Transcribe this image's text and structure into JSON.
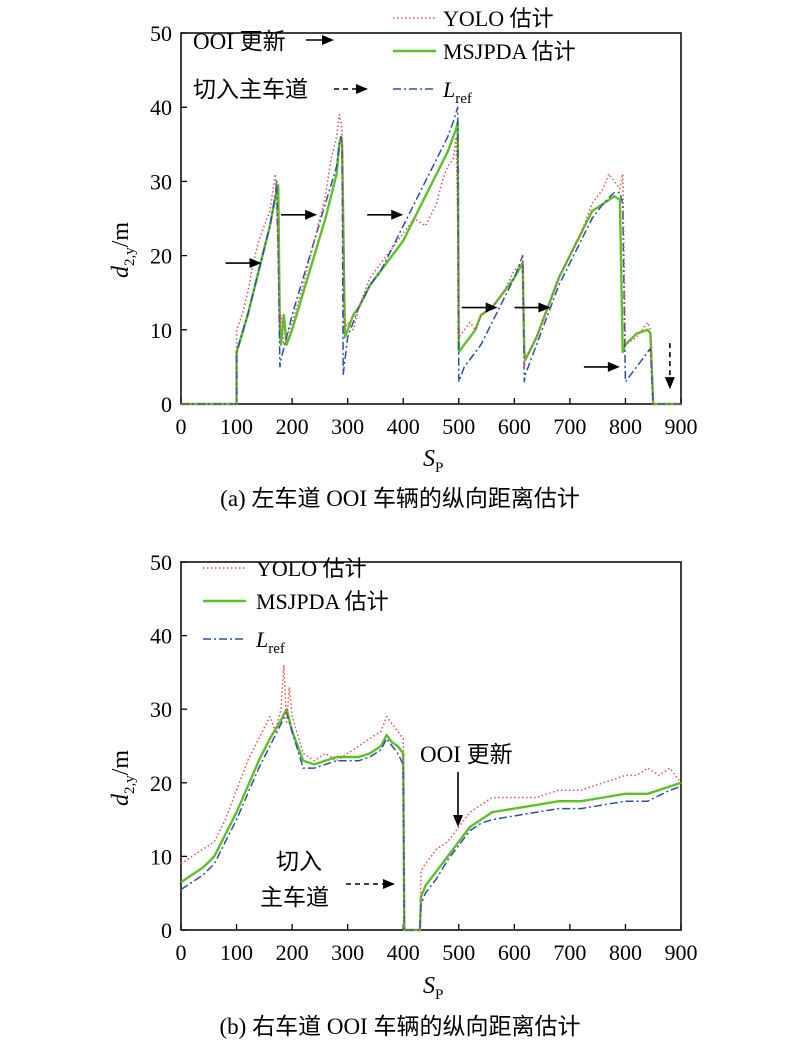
{
  "chart_data": [
    {
      "type": "line",
      "caption": "(a) 左车道 OOI 车辆的纵向距离估计",
      "xlabel": "S",
      "xlabel_sub": "P",
      "ylabel": "d",
      "ylabel_sub": "2,y",
      "ylabel_unit": "/m",
      "xlim": [
        0,
        900
      ],
      "ylim": [
        0,
        50
      ],
      "xticks": [
        0,
        100,
        200,
        300,
        400,
        500,
        600,
        700,
        800,
        900
      ],
      "yticks": [
        0,
        10,
        20,
        30,
        40,
        50
      ],
      "grid": false,
      "legend_position": "top-right",
      "series": [
        {
          "name": "YOLO 估计",
          "color": "#d9534f",
          "style": "dotted",
          "x": [
            0,
            95,
            100,
            100,
            110,
            120,
            130,
            140,
            150,
            160,
            170,
            175,
            178,
            180,
            185,
            190,
            200,
            220,
            240,
            260,
            270,
            280,
            285,
            288,
            290,
            295,
            300,
            310,
            320,
            340,
            360,
            380,
            400,
            420,
            440,
            460,
            470,
            480,
            490,
            495,
            498,
            500,
            510,
            520,
            530,
            540,
            560,
            580,
            600,
            615,
            618,
            620,
            640,
            660,
            680,
            700,
            720,
            740,
            760,
            770,
            780,
            790,
            795,
            800,
            820,
            840,
            845,
            850,
            900
          ],
          "y": [
            0,
            0,
            0,
            10,
            12,
            15,
            19,
            22,
            24,
            26,
            31,
            20,
            10,
            12,
            8,
            9,
            11,
            16,
            22,
            28,
            33,
            36,
            39,
            38,
            37,
            10,
            11,
            10,
            13,
            17,
            19,
            21,
            23,
            25,
            24,
            27,
            30,
            32,
            33,
            36,
            25,
            9,
            10,
            11,
            10,
            12,
            13,
            15,
            18,
            19,
            5,
            6,
            9,
            13,
            17,
            20,
            23,
            27,
            29,
            31,
            30,
            29,
            31,
            8,
            9,
            11,
            10,
            0,
            0
          ]
        },
        {
          "name": "MSJPDA 估计",
          "color": "#5fbf2a",
          "style": "solid",
          "x": [
            0,
            95,
            100,
            100,
            120,
            140,
            160,
            170,
            175,
            178,
            180,
            185,
            190,
            200,
            220,
            240,
            260,
            280,
            285,
            288,
            290,
            295,
            300,
            310,
            320,
            340,
            360,
            380,
            400,
            420,
            440,
            460,
            480,
            490,
            495,
            498,
            500,
            510,
            520,
            530,
            540,
            560,
            580,
            600,
            615,
            618,
            620,
            640,
            660,
            680,
            700,
            720,
            740,
            760,
            780,
            790,
            795,
            800,
            820,
            840,
            845,
            850,
            900
          ],
          "y": [
            0,
            0,
            0,
            7,
            12,
            18,
            24,
            28,
            29.5,
            10,
            8,
            12,
            8,
            10,
            15,
            20,
            25,
            31,
            35,
            36,
            35,
            9,
            10,
            12,
            13,
            16,
            18,
            20,
            22,
            25,
            28,
            31,
            34,
            36,
            37,
            38,
            7,
            8,
            9,
            10,
            12,
            13,
            15,
            17,
            19,
            7,
            6,
            9,
            13,
            17,
            20,
            23,
            26,
            27,
            28,
            27.5,
            7,
            8,
            9.5,
            10,
            9.5,
            0,
            0
          ]
        },
        {
          "name": "L_ref",
          "color": "#2b4fa8",
          "style": "dashdot",
          "x": [
            0,
            95,
            100,
            100,
            120,
            140,
            160,
            170,
            172,
            175,
            178,
            180,
            200,
            220,
            240,
            260,
            280,
            285,
            288,
            290,
            292,
            300,
            320,
            340,
            360,
            380,
            400,
            420,
            440,
            460,
            480,
            490,
            498,
            500,
            510,
            520,
            540,
            560,
            580,
            600,
            615,
            618,
            620,
            640,
            660,
            680,
            700,
            720,
            740,
            760,
            780,
            790,
            795,
            800,
            820,
            840,
            845,
            850,
            900
          ],
          "y": [
            0,
            0,
            0,
            7,
            12,
            18,
            24,
            28,
            30,
            20,
            5,
            6,
            12,
            17,
            22,
            27,
            32,
            35,
            36,
            35,
            4,
            9,
            13,
            16,
            18,
            21,
            24,
            27,
            30,
            33,
            36,
            38,
            40,
            3,
            5,
            6,
            8,
            11,
            14,
            17,
            20,
            3,
            4,
            8,
            12,
            16,
            19,
            22,
            25,
            27,
            28.5,
            28.5,
            27,
            3,
            5,
            7,
            7.5,
            0,
            0
          ]
        }
      ],
      "annotations": [
        {
          "text": "OOI 更新",
          "arrow": "right"
        },
        {
          "text": "切入主车道",
          "arrow": "dashed-right"
        }
      ],
      "arrows_solid": [
        [
          145,
          19
        ],
        [
          245,
          25.5
        ],
        [
          400,
          25.5
        ],
        [
          570,
          13
        ],
        [
          665,
          13
        ],
        [
          790,
          5
        ]
      ],
      "arrow_dashed_down": [
        880,
        2
      ]
    },
    {
      "type": "line",
      "caption": "(b) 右车道 OOI 车辆的纵向距离估计",
      "xlabel": "S",
      "xlabel_sub": "P",
      "ylabel": "d",
      "ylabel_sub": "2,y",
      "ylabel_unit": "/m",
      "xlim": [
        0,
        900
      ],
      "ylim": [
        0,
        50
      ],
      "xticks": [
        0,
        100,
        200,
        300,
        400,
        500,
        600,
        700,
        800,
        900
      ],
      "yticks": [
        0,
        10,
        20,
        30,
        40,
        50
      ],
      "grid": false,
      "legend_position": "top-left",
      "series": [
        {
          "name": "YOLO 估计",
          "color": "#d9534f",
          "style": "dotted",
          "x": [
            0,
            20,
            40,
            60,
            80,
            100,
            120,
            140,
            160,
            170,
            180,
            185,
            190,
            195,
            200,
            220,
            240,
            260,
            280,
            300,
            320,
            340,
            360,
            370,
            380,
            390,
            400,
            402,
            405,
            430,
            432,
            440,
            460,
            480,
            500,
            520,
            540,
            560,
            600,
            640,
            680,
            720,
            760,
            800,
            820,
            840,
            860,
            880,
            900
          ],
          "y": [
            9,
            10,
            11,
            12,
            15,
            19,
            23,
            26,
            29,
            27,
            30,
            36,
            28,
            33,
            29,
            24,
            23,
            24,
            23,
            24,
            25,
            26,
            27,
            29,
            28,
            27,
            26,
            0,
            0,
            0,
            8,
            9,
            11,
            12,
            14,
            16,
            17,
            18,
            18,
            18,
            19,
            19,
            20,
            21,
            21,
            22,
            21,
            22,
            20
          ]
        },
        {
          "name": "MSJPDA 估计",
          "color": "#5fbf2a",
          "style": "solid",
          "x": [
            0,
            20,
            40,
            60,
            80,
            100,
            120,
            140,
            160,
            180,
            190,
            200,
            220,
            240,
            260,
            280,
            300,
            320,
            340,
            360,
            370,
            380,
            390,
            400,
            402,
            405,
            430,
            432,
            440,
            460,
            480,
            500,
            520,
            540,
            560,
            600,
            640,
            680,
            720,
            760,
            800,
            840,
            880,
            900
          ],
          "y": [
            6.5,
            7.5,
            8.5,
            10,
            13,
            16,
            19.5,
            23,
            26,
            28.5,
            30,
            27,
            23,
            22.5,
            23,
            23.5,
            23.5,
            23.5,
            24,
            25,
            26.5,
            25.5,
            25,
            24,
            0,
            0,
            0,
            4.5,
            6,
            8,
            10,
            12,
            14,
            15,
            16,
            16.5,
            17,
            17.5,
            17.5,
            18,
            18.5,
            18.5,
            19.5,
            20
          ]
        },
        {
          "name": "L_ref",
          "color": "#2b4fa8",
          "style": "dashdot",
          "x": [
            0,
            20,
            40,
            60,
            80,
            100,
            120,
            140,
            160,
            180,
            190,
            200,
            220,
            240,
            260,
            280,
            300,
            320,
            340,
            360,
            370,
            380,
            390,
            400,
            402,
            405,
            430,
            432,
            440,
            460,
            480,
            500,
            520,
            540,
            560,
            600,
            640,
            680,
            720,
            760,
            800,
            840,
            880,
            900
          ],
          "y": [
            5.5,
            6.5,
            7.5,
            9,
            12,
            15,
            18.5,
            22,
            25,
            28,
            29.5,
            27,
            22,
            22,
            22.5,
            23,
            23,
            23,
            23.5,
            24.5,
            26,
            25,
            24,
            22.5,
            0,
            0,
            0,
            3.5,
            5,
            7,
            9.5,
            11.5,
            13.5,
            14.5,
            15,
            15.5,
            16,
            16.5,
            16.5,
            17,
            17.5,
            17.5,
            19,
            19.5
          ]
        }
      ],
      "annotations": [
        {
          "text": "OOI 更新",
          "arrow": "down"
        },
        {
          "text": "切入\n主车道",
          "arrow": "dashed-right"
        }
      ]
    }
  ]
}
